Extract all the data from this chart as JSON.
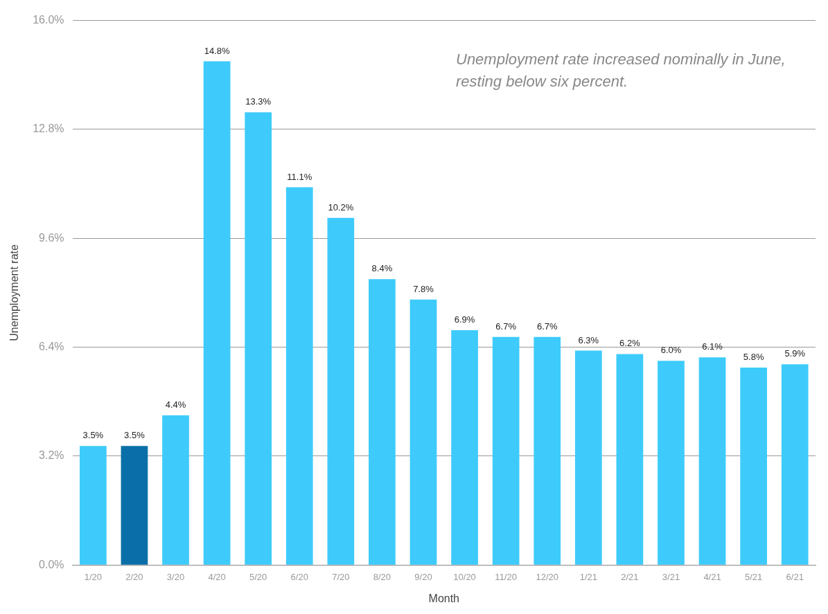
{
  "chart_data": {
    "type": "bar",
    "xlabel": "Month",
    "ylabel": "Unemployment rate",
    "categories": [
      "1/20",
      "2/20",
      "3/20",
      "4/20",
      "5/20",
      "6/20",
      "7/20",
      "8/20",
      "9/20",
      "10/20",
      "11/20",
      "12/20",
      "1/21",
      "2/21",
      "3/21",
      "4/21",
      "5/21",
      "6/21"
    ],
    "values": [
      3.5,
      3.5,
      4.4,
      14.8,
      13.3,
      11.1,
      10.2,
      8.4,
      7.8,
      6.9,
      6.7,
      6.7,
      6.3,
      6.2,
      6.0,
      6.1,
      5.8,
      5.9
    ],
    "value_labels": [
      "3.5%",
      "3.5%",
      "4.4%",
      "14.8%",
      "13.3%",
      "11.1%",
      "10.2%",
      "8.4%",
      "7.8%",
      "6.9%",
      "6.7%",
      "6.7%",
      "6.3%",
      "6.2%",
      "6.0%",
      "6.1%",
      "5.8%",
      "5.9%"
    ],
    "colors": [
      "#3ecbfb",
      "#0a6fa8",
      "#3ecbfb",
      "#3ecbfb",
      "#3ecbfb",
      "#3ecbfb",
      "#3ecbfb",
      "#3ecbfb",
      "#3ecbfb",
      "#3ecbfb",
      "#3ecbfb",
      "#3ecbfb",
      "#3ecbfb",
      "#3ecbfb",
      "#3ecbfb",
      "#3ecbfb",
      "#3ecbfb",
      "#3ecbfb"
    ],
    "ylim": [
      0,
      16
    ],
    "yticks": [
      {
        "value": 0,
        "label": "0.0%"
      },
      {
        "value": 3.2,
        "label": "3.2%"
      },
      {
        "value": 6.4,
        "label": "6.4%"
      },
      {
        "value": 9.6,
        "label": "9.6%"
      },
      {
        "value": 12.8,
        "label": "12.8%"
      },
      {
        "value": 16,
        "label": "16.0%"
      }
    ],
    "grid": "y",
    "legend": false,
    "annotations": [
      "Unemployment rate increased nominally in June, resting below six percent."
    ]
  }
}
